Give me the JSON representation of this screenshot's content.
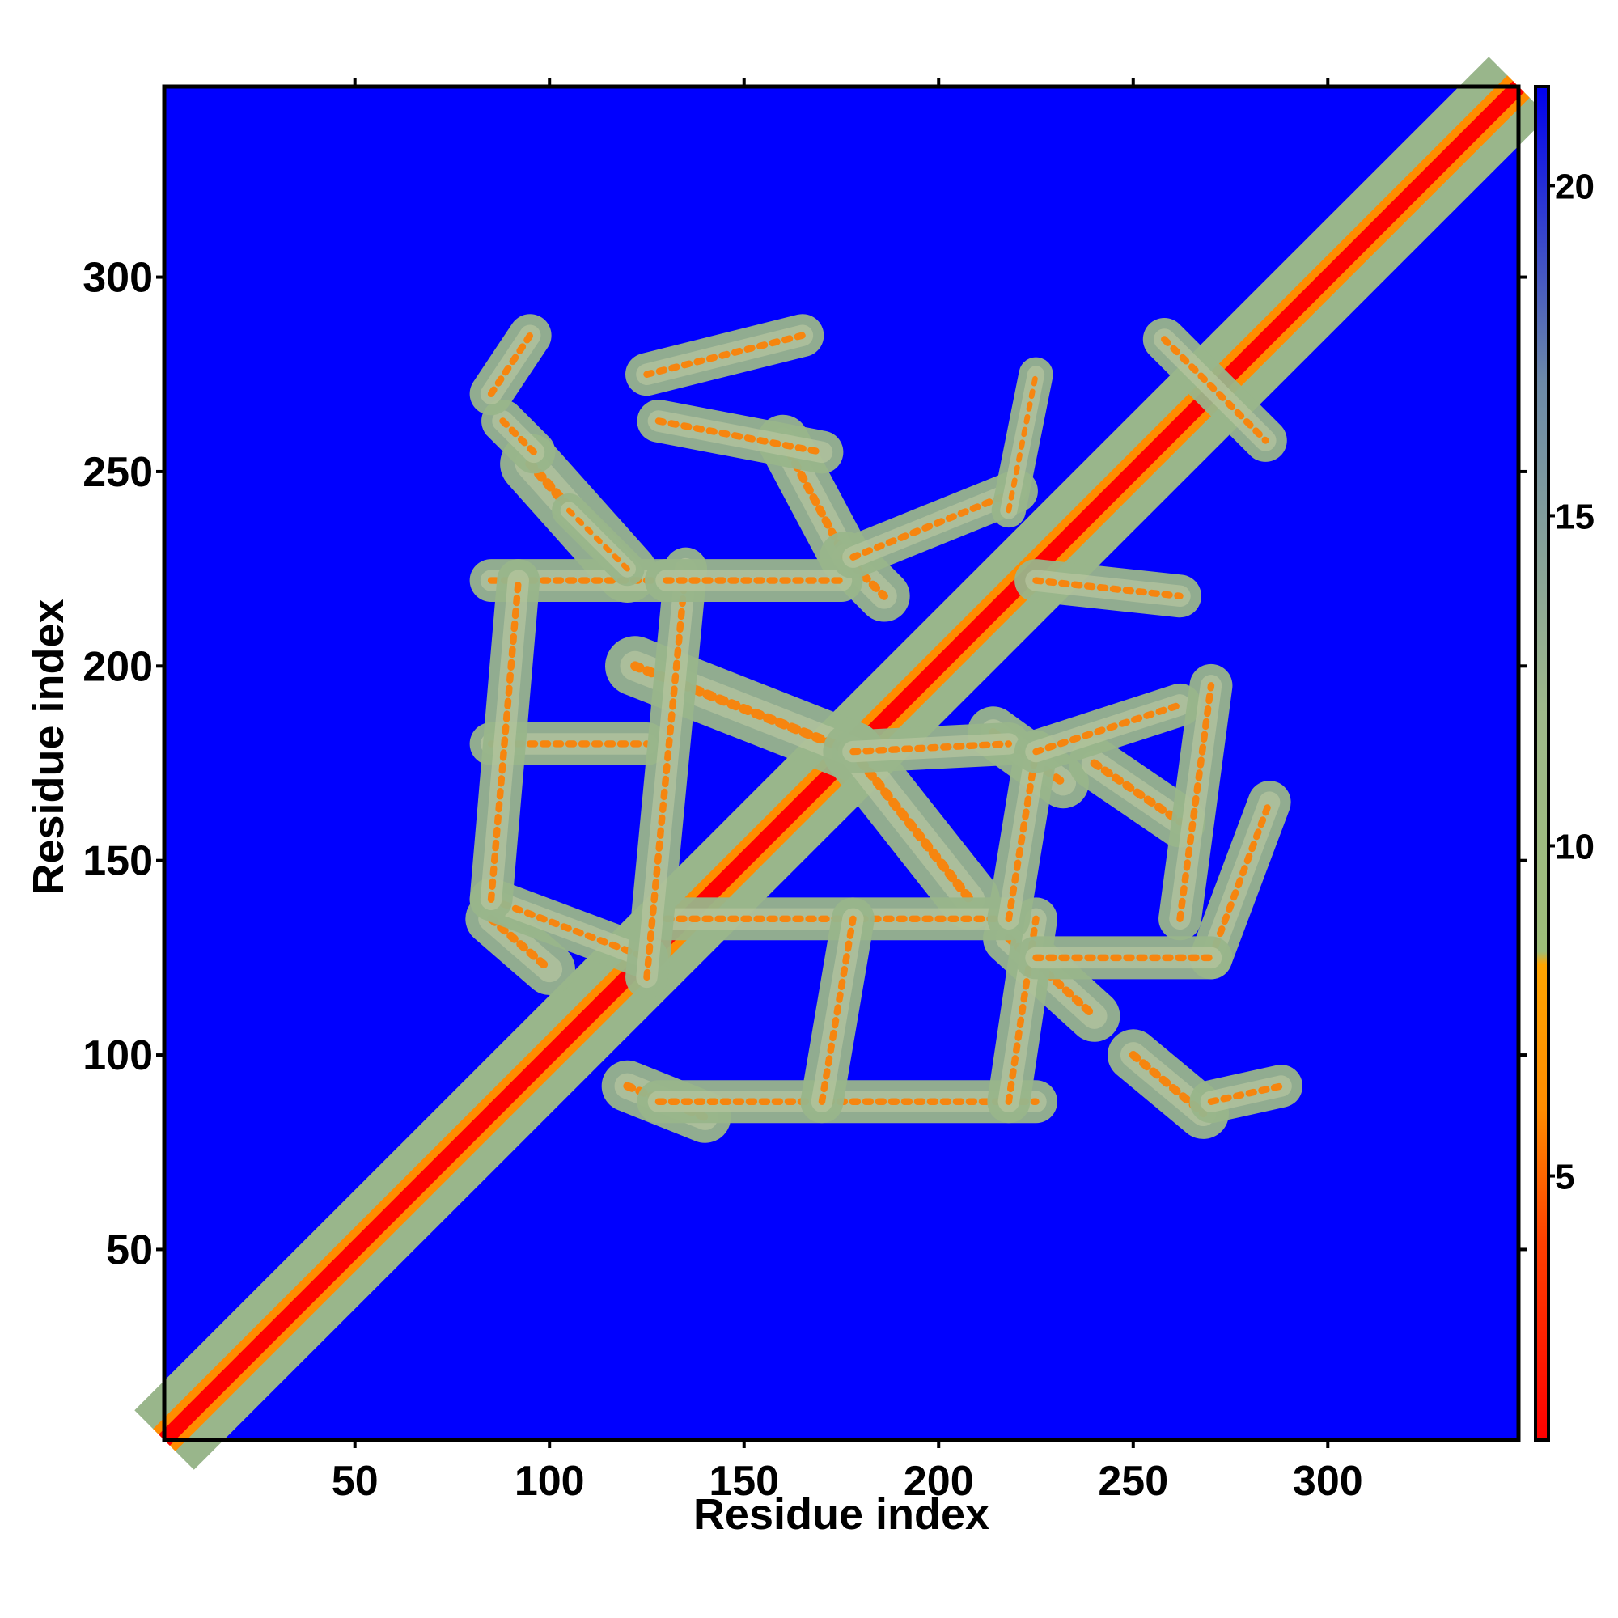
{
  "chart_data": {
    "type": "heatmap",
    "title": "",
    "xlabel": "Residue index",
    "ylabel": "Residue index",
    "xlim": [
      1,
      349
    ],
    "ylim": [
      1,
      349
    ],
    "x_ticks": [
      50,
      100,
      150,
      200,
      250,
      300
    ],
    "y_ticks": [
      50,
      100,
      150,
      200,
      250,
      300
    ],
    "colorbar": {
      "min": 1,
      "max": 21.5,
      "ticks": [
        5,
        10,
        15,
        20
      ],
      "stops": [
        {
          "value": 1,
          "color": "#ff0000"
        },
        {
          "value": 4,
          "color": "#ff4000"
        },
        {
          "value": 6,
          "color": "#ff8c00"
        },
        {
          "value": 8.2,
          "color": "#ffa500"
        },
        {
          "value": 8.4,
          "color": "#9dbd78"
        },
        {
          "value": 12,
          "color": "#9fb98a"
        },
        {
          "value": 17,
          "color": "#6d8aa8"
        },
        {
          "value": 21.5,
          "color": "#0000f0"
        }
      ]
    },
    "background_color": "#0000ff",
    "diagonal_color": "#ff0000",
    "contact_color": "#99b68b",
    "near_color": "#ff7f00",
    "features": [
      {
        "kind": "diagonal",
        "from": 1,
        "to": 349,
        "width": 9
      },
      {
        "kind": "cross",
        "center": [
          271,
          271
        ],
        "arm": 13,
        "width": 5
      },
      {
        "kind": "anti",
        "from": [
          95,
          252
        ],
        "to": [
          120,
          224
        ],
        "width": 7
      },
      {
        "kind": "anti",
        "from": [
          122,
          200
        ],
        "to": [
          178,
          178
        ],
        "width": 7
      },
      {
        "kind": "anti",
        "from": [
          178,
          178
        ],
        "to": [
          208,
          140
        ],
        "width": 7
      },
      {
        "kind": "anti",
        "from": [
          218,
          130
        ],
        "to": [
          240,
          110
        ],
        "width": 6
      },
      {
        "kind": "anti",
        "from": [
          250,
          100
        ],
        "to": [
          268,
          85
        ],
        "width": 6
      },
      {
        "kind": "anti",
        "from": [
          88,
          263
        ],
        "to": [
          96,
          255
        ],
        "width": 5
      },
      {
        "kind": "anti",
        "from": [
          160,
          258
        ],
        "to": [
          176,
          228
        ],
        "width": 6
      },
      {
        "kind": "anti",
        "from": [
          176,
          228
        ],
        "to": [
          186,
          218
        ],
        "width": 6
      },
      {
        "kind": "anti",
        "from": [
          214,
          183
        ],
        "to": [
          232,
          170
        ],
        "width": 6
      },
      {
        "kind": "anti",
        "from": [
          240,
          175
        ],
        "to": [
          262,
          160
        ],
        "width": 6
      },
      {
        "kind": "anti",
        "from": [
          85,
          135
        ],
        "to": [
          100,
          122
        ],
        "width": 6
      },
      {
        "kind": "anti",
        "from": [
          120,
          92
        ],
        "to": [
          140,
          84
        ],
        "width": 6
      },
      {
        "kind": "segment",
        "from": [
          85,
          270
        ],
        "to": [
          95,
          285
        ],
        "width": 5
      },
      {
        "kind": "segment",
        "from": [
          125,
          275
        ],
        "to": [
          165,
          285
        ],
        "width": 5
      },
      {
        "kind": "segment",
        "from": [
          128,
          263
        ],
        "to": [
          170,
          255
        ],
        "width": 5
      },
      {
        "kind": "segment",
        "from": [
          85,
          222
        ],
        "to": [
          130,
          222
        ],
        "width": 5
      },
      {
        "kind": "segment",
        "from": [
          85,
          180
        ],
        "to": [
          125,
          180
        ],
        "width": 5
      },
      {
        "kind": "segment",
        "from": [
          85,
          140
        ],
        "to": [
          125,
          125
        ],
        "width": 5
      },
      {
        "kind": "segment",
        "from": [
          130,
          135
        ],
        "to": [
          218,
          135
        ],
        "width": 5
      },
      {
        "kind": "segment",
        "from": [
          128,
          88
        ],
        "to": [
          225,
          88
        ],
        "width": 5
      },
      {
        "kind": "segment",
        "from": [
          170,
          88
        ],
        "to": [
          178,
          135
        ],
        "width": 5
      },
      {
        "kind": "segment",
        "from": [
          218,
          88
        ],
        "to": [
          225,
          135
        ],
        "width": 5
      },
      {
        "kind": "segment",
        "from": [
          85,
          140
        ],
        "to": [
          92,
          222
        ],
        "width": 5
      },
      {
        "kind": "segment",
        "from": [
          125,
          120
        ],
        "to": [
          135,
          225
        ],
        "width": 5
      },
      {
        "kind": "segment",
        "from": [
          130,
          222
        ],
        "to": [
          175,
          222
        ],
        "width": 5
      },
      {
        "kind": "segment",
        "from": [
          178,
          228
        ],
        "to": [
          220,
          245
        ],
        "width": 5
      },
      {
        "kind": "segment",
        "from": [
          178,
          178
        ],
        "to": [
          218,
          180
        ],
        "width": 5
      },
      {
        "kind": "segment",
        "from": [
          218,
          135
        ],
        "to": [
          225,
          178
        ],
        "width": 5
      },
      {
        "kind": "segment",
        "from": [
          225,
          178
        ],
        "to": [
          262,
          190
        ],
        "width": 5
      },
      {
        "kind": "segment",
        "from": [
          262,
          135
        ],
        "to": [
          270,
          195
        ],
        "width": 5
      },
      {
        "kind": "segment",
        "from": [
          270,
          125
        ],
        "to": [
          285,
          165
        ],
        "width": 5
      },
      {
        "kind": "segment",
        "from": [
          225,
          125
        ],
        "to": [
          270,
          125
        ],
        "width": 5
      },
      {
        "kind": "segment",
        "from": [
          270,
          88
        ],
        "to": [
          288,
          92
        ],
        "width": 5
      },
      {
        "kind": "segment",
        "from": [
          225,
          222
        ],
        "to": [
          262,
          218
        ],
        "width": 5
      },
      {
        "kind": "segment",
        "from": [
          105,
          240
        ],
        "to": [
          120,
          225
        ],
        "width": 4
      },
      {
        "kind": "segment",
        "from": [
          218,
          240
        ],
        "to": [
          225,
          275
        ],
        "width": 4
      }
    ]
  }
}
